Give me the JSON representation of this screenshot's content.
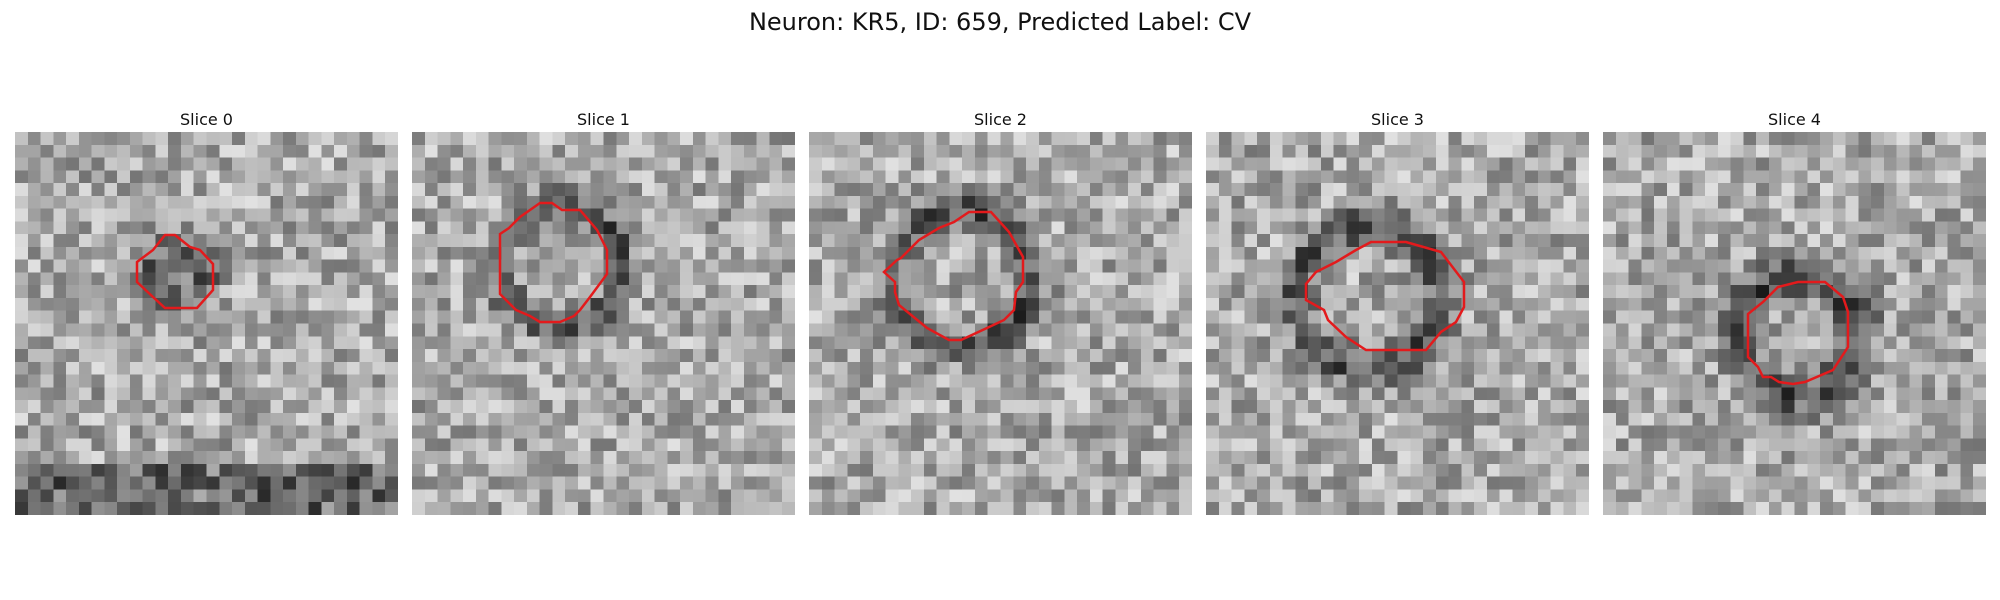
{
  "title": "Neuron: KR5, ID: 659, Predicted Label: CV",
  "slices": [
    {
      "label": "Slice 0"
    },
    {
      "label": "Slice 1"
    },
    {
      "label": "Slice 2"
    },
    {
      "label": "Slice 3"
    },
    {
      "label": "Slice 4"
    }
  ],
  "contour_color": "#e31a1c"
}
